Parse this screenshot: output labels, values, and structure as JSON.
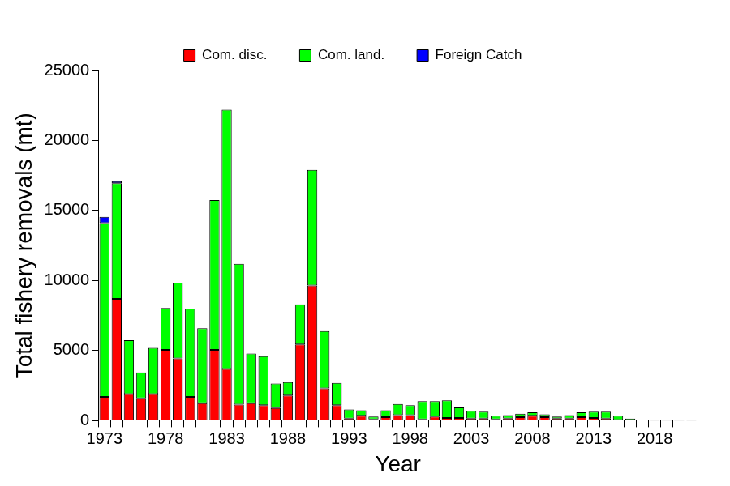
{
  "chart_data": {
    "type": "bar",
    "stacked": true,
    "grid": false,
    "legend": "top",
    "x_label": "Year",
    "y_label": "Total fishery removals (mt)",
    "categories": [
      "1973",
      null,
      null,
      null,
      null,
      "1978",
      null,
      null,
      null,
      null,
      "1983",
      null,
      null,
      null,
      null,
      "1988",
      null,
      null,
      null,
      null,
      "1993",
      null,
      null,
      null,
      null,
      "1998",
      null,
      null,
      null,
      null,
      "2003",
      null,
      null,
      null,
      null,
      "2008",
      null,
      null,
      null,
      null,
      "2013",
      null,
      null,
      null,
      null,
      "2018",
      null,
      null,
      null
    ],
    "series": [
      {
        "name": "Com. disc.",
        "color": "#ff0000",
        "values": [
          1700,
          8700,
          1900,
          1600,
          1900,
          5050,
          4450,
          1700,
          1250,
          5050,
          3700,
          1150,
          1250,
          1100,
          900,
          1800,
          5450,
          9650,
          2300,
          1100,
          150,
          350,
          100,
          250,
          400,
          400,
          100,
          300,
          200,
          200,
          150,
          150,
          100,
          150,
          250,
          350,
          250,
          150,
          150,
          250,
          200,
          150,
          50,
          30,
          20,
          10,
          10,
          10,
          10
        ]
      },
      {
        "name": "Com. land.",
        "color": "#00ff00",
        "values": [
          12400,
          8250,
          3850,
          1850,
          3300,
          3000,
          5400,
          6300,
          5350,
          10700,
          18500,
          10050,
          3550,
          3500,
          1750,
          950,
          2850,
          8250,
          4100,
          1600,
          650,
          400,
          200,
          500,
          800,
          700,
          1300,
          1100,
          1250,
          750,
          550,
          500,
          250,
          250,
          250,
          250,
          200,
          150,
          250,
          350,
          450,
          500,
          300,
          120,
          60,
          30,
          20,
          20,
          20
        ]
      },
      {
        "name": "Foreign Catch",
        "color": "#0000ff",
        "values": [
          450,
          150,
          0,
          0,
          0,
          0,
          0,
          0,
          0,
          0,
          0,
          0,
          0,
          0,
          0,
          0,
          0,
          0,
          0,
          0,
          0,
          0,
          0,
          0,
          0,
          0,
          0,
          0,
          0,
          0,
          0,
          0,
          0,
          0,
          0,
          0,
          0,
          0,
          0,
          0,
          0,
          0,
          0,
          0,
          0,
          0,
          0,
          0,
          0
        ]
      }
    ],
    "ylim": [
      0,
      25000
    ],
    "yticks": [
      0,
      5000,
      10000,
      15000,
      20000,
      25000
    ]
  }
}
